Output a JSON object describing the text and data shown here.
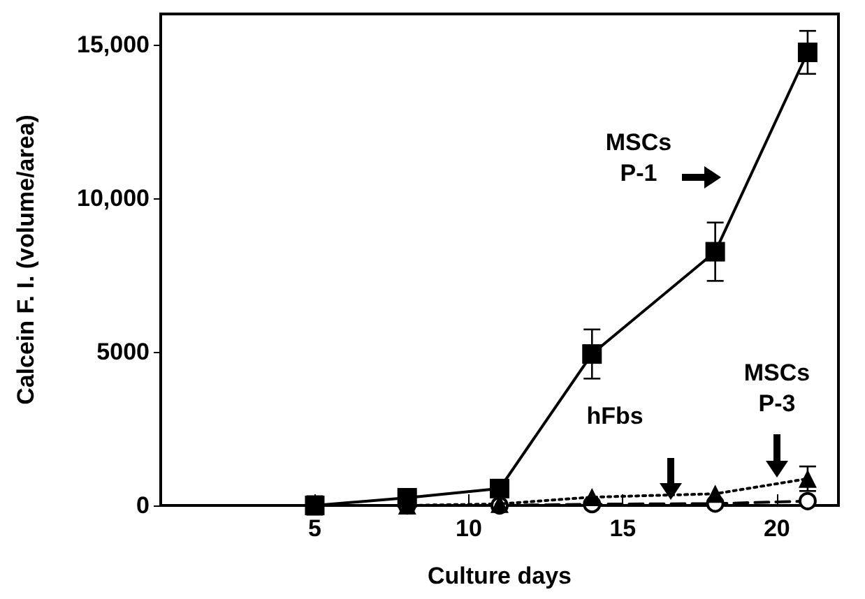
{
  "chart_data": {
    "type": "line",
    "xlabel": "Culture days",
    "ylabel": "Calcein F. I. (volume/area)",
    "x": [
      5,
      8,
      11,
      14,
      18,
      21
    ],
    "series": [
      {
        "color": "#000000",
        "marker": "square",
        "line_style": "solid",
        "values": [
          0,
          250,
          550,
          4930,
          8260,
          14750
        ],
        "errors": [
          null,
          null,
          null,
          800,
          950,
          700
        ]
      },
      {
        "color": "#000000",
        "marker": "triangle",
        "line_style": "dotted",
        "values": [
          0,
          0,
          50,
          270,
          380,
          870
        ],
        "errors": [
          300,
          null,
          null,
          null,
          null,
          400
        ]
      },
      {
        "color": "#000000",
        "marker": "circle",
        "line_style": "dashed",
        "values": [
          0,
          0,
          0,
          40,
          60,
          140
        ]
      }
    ],
    "xlim": [
      0,
      22
    ],
    "xticks": [
      5,
      10,
      15,
      20
    ],
    "ylim": [
      0,
      16000
    ],
    "yticks": [
      0,
      {
        "value": 5000,
        "label": "5000"
      },
      {
        "value": 10000,
        "label": "10,000"
      },
      {
        "value": 15000,
        "label": "15,000"
      }
    ],
    "grid": false,
    "annotations": [
      "MSCs\nP-1",
      "hFbs",
      "MSCs\nP-3"
    ]
  }
}
